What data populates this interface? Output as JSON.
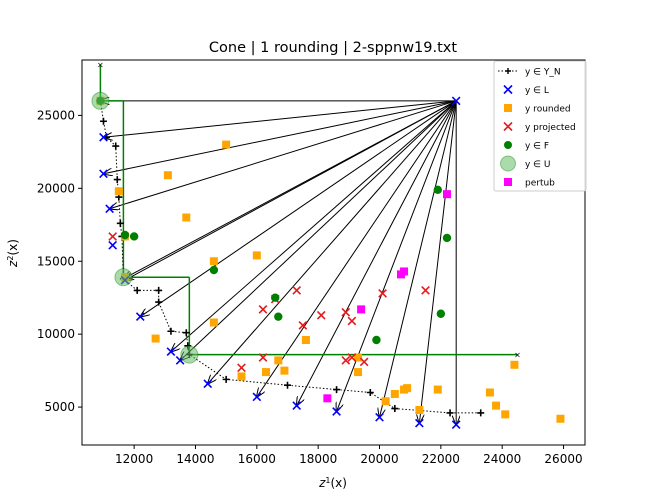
{
  "chart_data": {
    "type": "scatter",
    "title": "Cone | 1 rounding | 2-sppnw19.txt",
    "xlabel": "z1(x)",
    "ylabel": "z2(x)",
    "xlim": [
      10300,
      26700
    ],
    "ylim": [
      2400,
      28800
    ],
    "xticks": [
      12000,
      14000,
      16000,
      18000,
      20000,
      22000,
      24000,
      26000
    ],
    "yticks": [
      5000,
      10000,
      15000,
      20000,
      25000
    ],
    "legend_position": "top-right",
    "legend": [
      {
        "label": "y ∈ Y_N",
        "marker": "plus-dotted"
      },
      {
        "label": "y ∈ L",
        "marker": "x-blue"
      },
      {
        "label": "y rounded",
        "marker": "square-orange"
      },
      {
        "label": "y projected",
        "marker": "x-red"
      },
      {
        "label": "y ∈ F",
        "marker": "circle-green"
      },
      {
        "label": "y ∈ U",
        "marker": "big-circle-green"
      },
      {
        "label": "pertub",
        "marker": "square-magenta"
      }
    ],
    "colors": {
      "YN": "#000000",
      "L": "#0000ff",
      "rounded": "#ffa500",
      "projected": "#e41a1c",
      "F": "#008000",
      "U": "#66bb66",
      "pertub": "#ff00ff",
      "arrow": "#000000"
    },
    "nadir": [
      22500,
      26000
    ],
    "series": {
      "YN": [
        [
          10900,
          26000
        ],
        [
          11000,
          24600
        ],
        [
          11100,
          23500
        ],
        [
          11400,
          22900
        ],
        [
          11450,
          20600
        ],
        [
          11500,
          19400
        ],
        [
          11550,
          17600
        ],
        [
          11600,
          16700
        ],
        [
          11650,
          13800
        ],
        [
          12100,
          13000
        ],
        [
          12800,
          13000
        ],
        [
          12800,
          12200
        ],
        [
          13200,
          10200
        ],
        [
          13700,
          10100
        ],
        [
          13750,
          9200
        ],
        [
          13800,
          8600
        ],
        [
          15000,
          6900
        ],
        [
          17000,
          6500
        ],
        [
          18600,
          6200
        ],
        [
          19700,
          6000
        ],
        [
          20500,
          4900
        ],
        [
          22300,
          4600
        ],
        [
          23300,
          4600
        ]
      ],
      "L": [
        [
          22500,
          26000
        ],
        [
          11000,
          23500
        ],
        [
          11000,
          21000
        ],
        [
          11200,
          18600
        ],
        [
          11300,
          16100
        ],
        [
          11700,
          13700
        ],
        [
          12200,
          11200
        ],
        [
          13200,
          8800
        ],
        [
          13500,
          8200
        ],
        [
          14400,
          6600
        ],
        [
          16000,
          5700
        ],
        [
          17300,
          5100
        ],
        [
          18600,
          4700
        ],
        [
          20000,
          4300
        ],
        [
          21300,
          3900
        ],
        [
          22500,
          3800
        ]
      ],
      "rounded": [
        [
          10900,
          26000
        ],
        [
          15000,
          23000
        ],
        [
          13100,
          20900
        ],
        [
          11500,
          19800
        ],
        [
          13700,
          18000
        ],
        [
          11700,
          16700
        ],
        [
          14600,
          15000
        ],
        [
          16000,
          15400
        ],
        [
          11700,
          13900
        ],
        [
          14600,
          10800
        ],
        [
          12700,
          9700
        ],
        [
          17600,
          9600
        ],
        [
          16300,
          7400
        ],
        [
          16700,
          8200
        ],
        [
          16900,
          7500
        ],
        [
          15500,
          7100
        ],
        [
          19300,
          8400
        ],
        [
          19300,
          7400
        ],
        [
          20200,
          5400
        ],
        [
          20500,
          5900
        ],
        [
          20800,
          6200
        ],
        [
          20900,
          6300
        ],
        [
          21300,
          4800
        ],
        [
          21900,
          6200
        ],
        [
          23600,
          6000
        ],
        [
          23800,
          5100
        ],
        [
          24100,
          4500
        ],
        [
          24400,
          7900
        ],
        [
          25900,
          4200
        ]
      ],
      "projected": [
        [
          11300,
          16700
        ],
        [
          16200,
          11700
        ],
        [
          16600,
          12400
        ],
        [
          17300,
          13000
        ],
        [
          17500,
          10600
        ],
        [
          18100,
          11300
        ],
        [
          18900,
          11500
        ],
        [
          19100,
          10900
        ],
        [
          19500,
          8100
        ],
        [
          20100,
          12800
        ],
        [
          21500,
          13000
        ],
        [
          16200,
          8400
        ],
        [
          15500,
          7700
        ],
        [
          18900,
          8200
        ],
        [
          19100,
          8400
        ]
      ],
      "F": [
        [
          10900,
          26000
        ],
        [
          11700,
          16800
        ],
        [
          12000,
          16700
        ],
        [
          14600,
          14400
        ],
        [
          16600,
          12500
        ],
        [
          16700,
          11200
        ],
        [
          19900,
          9600
        ],
        [
          21900,
          19900
        ],
        [
          22000,
          11400
        ],
        [
          22200,
          16600
        ]
      ],
      "U": [
        [
          10900,
          26000
        ],
        [
          11650,
          13900
        ],
        [
          13800,
          8600
        ]
      ],
      "pertub": [
        [
          20700,
          14100
        ],
        [
          20800,
          14300
        ],
        [
          22200,
          19600
        ],
        [
          19400,
          11700
        ],
        [
          18300,
          5600
        ]
      ],
      "cone_vertical": [
        [
          [
            10900,
            26000
          ],
          [
            10900,
            28500
          ]
        ],
        [
          [
            11650,
            13900
          ],
          [
            11650,
            26000
          ]
        ],
        [
          [
            13800,
            8600
          ],
          [
            13800,
            13900
          ]
        ]
      ],
      "cone_horizontal": [
        [
          [
            10900,
            26000
          ],
          [
            11650,
            26000
          ]
        ],
        [
          [
            11650,
            13900
          ],
          [
            13800,
            13900
          ]
        ],
        [
          [
            13800,
            8600
          ],
          [
            24500,
            8600
          ]
        ]
      ],
      "arrows_to": [
        [
          10900,
          26000
        ],
        [
          11000,
          23500
        ],
        [
          11000,
          21000
        ],
        [
          11200,
          18600
        ],
        [
          11650,
          13800
        ],
        [
          11700,
          13700
        ],
        [
          12200,
          11200
        ],
        [
          13200,
          8800
        ],
        [
          13500,
          8200
        ],
        [
          14400,
          6600
        ],
        [
          16000,
          5700
        ],
        [
          17300,
          5100
        ],
        [
          18600,
          4700
        ],
        [
          20000,
          4300
        ],
        [
          21300,
          3900
        ],
        [
          22500,
          3800
        ]
      ]
    }
  }
}
